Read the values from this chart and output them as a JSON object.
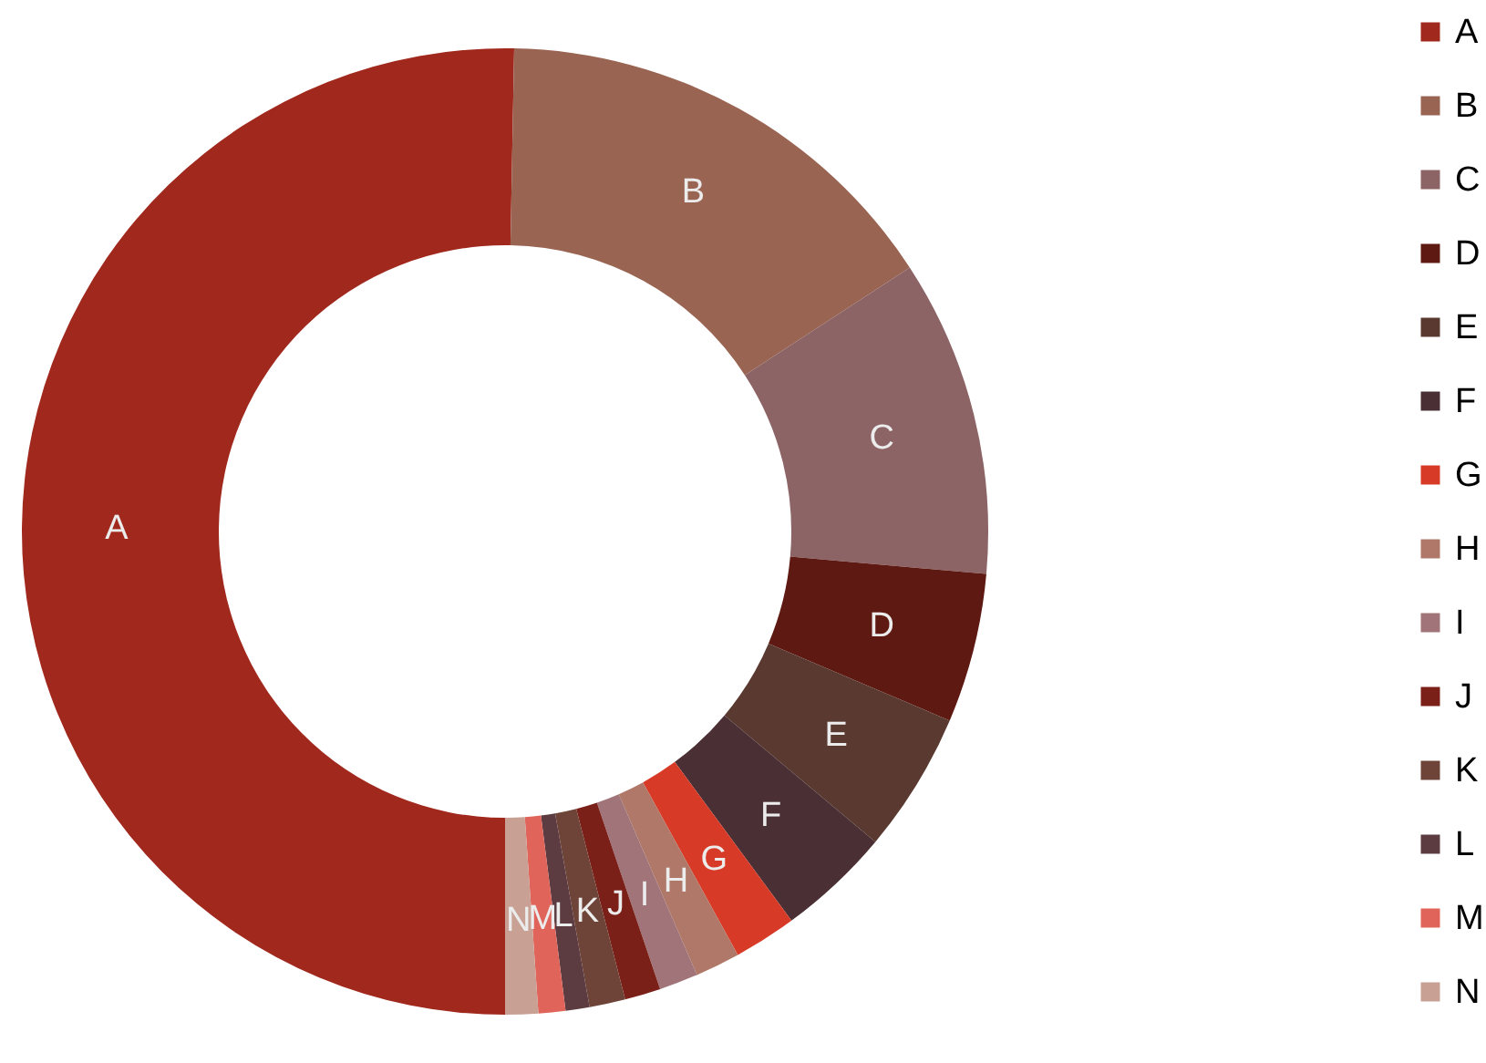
{
  "chart_data": {
    "type": "donut",
    "categories": [
      "A",
      "B",
      "C",
      "D",
      "E",
      "F",
      "G",
      "H",
      "I",
      "J",
      "K",
      "L",
      "M",
      "N"
    ],
    "values": [
      50.3,
      15.5,
      10.6,
      5,
      4.7,
      3.8,
      2.1,
      1.5,
      1.3,
      1.2,
      1.2,
      0.8,
      0.9,
      1.1
    ],
    "colors": [
      "#a0281c",
      "#9a6452",
      "#8c6466",
      "#5e1a12",
      "#5a3a30",
      "#4a3034",
      "#d83a28",
      "#b07868",
      "#a07478",
      "#7a2018",
      "#6e4438",
      "#5c3c40",
      "#e0645a",
      "#c8a094"
    ],
    "legend": "right"
  }
}
